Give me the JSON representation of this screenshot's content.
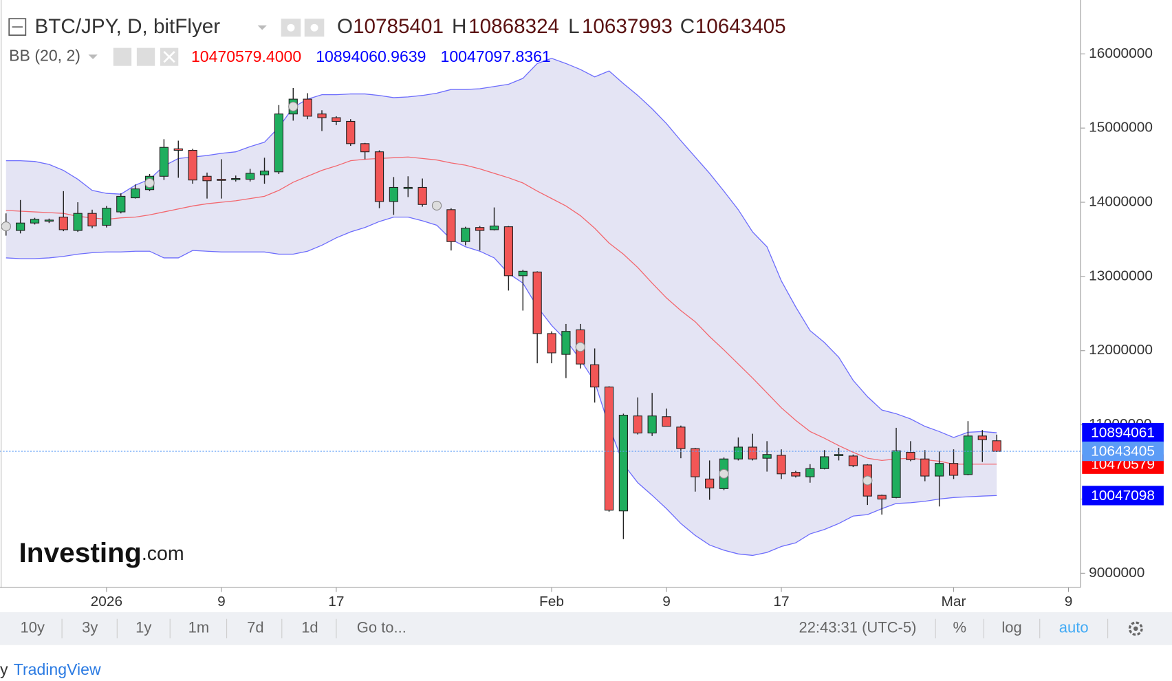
{
  "chart_data": {
    "type": "candlestick",
    "symbol": "BTC/JPY, D, bitFlyer",
    "ohlc_prefixes": {
      "open": "O",
      "high": "H",
      "low": "L",
      "close": "C"
    },
    "up_color": "#1fae5e",
    "down_color": "#f25656",
    "candles": {
      "open": [
        13650000,
        13620000,
        13720000,
        13750000,
        13800000,
        13620000,
        13850000,
        13690000,
        13870000,
        14060000,
        14170000,
        14350000,
        14720000,
        14700000,
        14350000,
        14310000,
        14310000,
        14310000,
        14370000,
        14410000,
        15190000,
        15390000,
        15190000,
        15140000,
        15090000,
        14790000,
        14680000,
        14010000,
        14190000,
        14200000,
        13960000,
        13900000,
        13470000,
        13660000,
        13630000,
        13670000,
        13010000,
        13060000,
        12230000,
        11950000,
        12280000,
        11810000,
        11510000,
        9840000,
        11120000,
        10890000,
        11110000,
        10970000,
        10680000,
        10270000,
        10140000,
        10540000,
        10700000,
        10550000,
        10590000,
        10360000,
        10300000,
        10410000,
        10590000,
        10580000,
        10460000,
        10050000,
        10020000,
        10630000,
        10540000,
        10310000,
        10480000,
        10330000,
        10850000,
        10785401
      ],
      "high": [
        13850000,
        14030000,
        13790000,
        13780000,
        14150000,
        14000000,
        13900000,
        13950000,
        14120000,
        14240000,
        14380000,
        14850000,
        14830000,
        14720000,
        14400000,
        14580000,
        14360000,
        14450000,
        14600000,
        15310000,
        15540000,
        15470000,
        15240000,
        15160000,
        15120000,
        14800000,
        14700000,
        14340000,
        14350000,
        14320000,
        13970000,
        13920000,
        13670000,
        13680000,
        13930000,
        13680000,
        13090000,
        13070000,
        12260000,
        12360000,
        12360000,
        12030000,
        11520000,
        11150000,
        11370000,
        11430000,
        11220000,
        10990000,
        10690000,
        10520000,
        10560000,
        10830000,
        10880000,
        10780000,
        10670000,
        10380000,
        10470000,
        10660000,
        10690000,
        10600000,
        10470000,
        10060000,
        10960000,
        10780000,
        10660000,
        10640000,
        10670000,
        11050000,
        10930000,
        10868324
      ],
      "low": [
        13550000,
        13580000,
        13700000,
        13720000,
        13610000,
        13600000,
        13650000,
        13660000,
        13850000,
        14050000,
        14150000,
        14300000,
        14330000,
        14250000,
        14050000,
        14050000,
        14280000,
        14280000,
        14250000,
        14380000,
        15100000,
        15120000,
        14960000,
        15040000,
        14760000,
        14580000,
        13920000,
        13830000,
        14070000,
        13940000,
        13940000,
        13350000,
        13420000,
        13350000,
        13620000,
        12810000,
        12540000,
        11830000,
        11830000,
        11630000,
        11760000,
        11300000,
        9830000,
        9460000,
        10870000,
        10850000,
        10980000,
        10550000,
        10100000,
        9990000,
        10120000,
        10520000,
        10520000,
        10370000,
        10270000,
        10290000,
        10220000,
        10400000,
        10520000,
        10430000,
        9920000,
        9790000,
        10010000,
        10510000,
        10240000,
        9900000,
        10270000,
        10320000,
        10500000,
        10637993
      ],
      "close": [
        13700000,
        13720000,
        13770000,
        13760000,
        13630000,
        13850000,
        13680000,
        13920000,
        14080000,
        14180000,
        14350000,
        14740000,
        14700000,
        14300000,
        14290000,
        14300000,
        14320000,
        14390000,
        14420000,
        15190000,
        15390000,
        15160000,
        15140000,
        15090000,
        14790000,
        14680000,
        14010000,
        14200000,
        14200000,
        13970000,
        13950000,
        13470000,
        13650000,
        13620000,
        13680000,
        13010000,
        13070000,
        12230000,
        11970000,
        12260000,
        11820000,
        11510000,
        9850000,
        11130000,
        10890000,
        11120000,
        10980000,
        10680000,
        10300000,
        10150000,
        10540000,
        10700000,
        10540000,
        10600000,
        10340000,
        10310000,
        10410000,
        10570000,
        10600000,
        10450000,
        10040000,
        10000000,
        10650000,
        10530000,
        10310000,
        10480000,
        10320000,
        10850000,
        10800000,
        10643405
      ]
    },
    "price_line_color": "#5c9cf6",
    "bollinger": {
      "label": "BB (20, 2)",
      "fill": "#e4e4f4",
      "bands": [
        {
          "color": "#ff0000",
          "current_label": "10470579.4000",
          "axis_label": "10470579",
          "values": [
            13890000,
            13880000,
            13870000,
            13860000,
            13850000,
            13810000,
            13790000,
            13770000,
            13790000,
            13800000,
            13830000,
            13870000,
            13910000,
            13950000,
            13980000,
            14000000,
            14020000,
            14050000,
            14080000,
            14160000,
            14270000,
            14350000,
            14430000,
            14490000,
            14560000,
            14580000,
            14590000,
            14600000,
            14610000,
            14590000,
            14570000,
            14530000,
            14500000,
            14450000,
            14390000,
            14330000,
            14260000,
            14150000,
            14050000,
            13950000,
            13820000,
            13650000,
            13450000,
            13300000,
            13120000,
            12910000,
            12710000,
            12540000,
            12390000,
            12190000,
            12010000,
            11820000,
            11630000,
            11430000,
            11230000,
            11060000,
            10910000,
            10820000,
            10720000,
            10630000,
            10550000,
            10520000,
            10540000,
            10550000,
            10530000,
            10510000,
            10470000,
            10470000,
            10470000,
            10470579.4
          ]
        },
        {
          "color": "#0000ff",
          "current_label": "10894060.9639",
          "axis_label": "10894061",
          "values": [
            14560000,
            14560000,
            14550000,
            14510000,
            14430000,
            14310000,
            14160000,
            14120000,
            14110000,
            14230000,
            14310000,
            14490000,
            14590000,
            14610000,
            14630000,
            14660000,
            14680000,
            14750000,
            14810000,
            15010000,
            15280000,
            15390000,
            15450000,
            15450000,
            15460000,
            15460000,
            15440000,
            15410000,
            15420000,
            15440000,
            15470000,
            15520000,
            15520000,
            15530000,
            15560000,
            15590000,
            15670000,
            15870000,
            15940000,
            15870000,
            15790000,
            15690000,
            15770000,
            15600000,
            15440000,
            15260000,
            15060000,
            14830000,
            14610000,
            14390000,
            14150000,
            13900000,
            13600000,
            13400000,
            12940000,
            12590000,
            12270000,
            12110000,
            11910000,
            11600000,
            11380000,
            11200000,
            11150000,
            11080000,
            10980000,
            10910000,
            10830000,
            10900000,
            10910000,
            10894060.9639
          ]
        },
        {
          "color": "#0000ff",
          "current_label": "10047097.8361",
          "axis_label": "10047098",
          "values": [
            13250000,
            13240000,
            13240000,
            13250000,
            13270000,
            13300000,
            13320000,
            13330000,
            13330000,
            13340000,
            13340000,
            13250000,
            13250000,
            13350000,
            13340000,
            13330000,
            13330000,
            13330000,
            13330000,
            13300000,
            13300000,
            13340000,
            13420000,
            13520000,
            13600000,
            13660000,
            13740000,
            13800000,
            13800000,
            13750000,
            13690000,
            13500000,
            13400000,
            13340000,
            13250000,
            13040000,
            12910000,
            12590000,
            12340000,
            12140000,
            11880000,
            11580000,
            10980000,
            10470000,
            10220000,
            10050000,
            9870000,
            9670000,
            9510000,
            9380000,
            9310000,
            9260000,
            9240000,
            9280000,
            9360000,
            9410000,
            9530000,
            9590000,
            9670000,
            9770000,
            9790000,
            9870000,
            9940000,
            9950000,
            9970000,
            10000000,
            10020000,
            10030000,
            10040000,
            10047097.8361
          ]
        }
      ]
    },
    "xlim": [
      -0.42,
      74.84
    ],
    "xticks": [
      {
        "value": 7,
        "label": "2026"
      },
      {
        "value": 15,
        "label": "9"
      },
      {
        "value": 23,
        "label": "17"
      },
      {
        "value": 38,
        "label": "Feb"
      },
      {
        "value": 46,
        "label": "9"
      },
      {
        "value": 54,
        "label": "17"
      },
      {
        "value": 66,
        "label": "Mar"
      },
      {
        "value": 74,
        "label": "9"
      }
    ],
    "ylim": [
      8808350,
      16726000
    ],
    "yticks": [
      9000000,
      10000000,
      11000000,
      12000000,
      13000000,
      14000000,
      15000000,
      16000000
    ],
    "grid": false,
    "log_scale": false
  },
  "watermark": {
    "name": "Investing",
    "suffix": ".com"
  },
  "toolbar": {
    "ranges": [
      "10y",
      "3y",
      "1y",
      "1m",
      "7d",
      "1d"
    ],
    "goto": "Go to...",
    "time": "22:43:31 (UTC-5)",
    "percent": "%",
    "log": "log",
    "auto": "auto"
  },
  "footer": {
    "prefix": "y",
    "link": "TradingView"
  }
}
